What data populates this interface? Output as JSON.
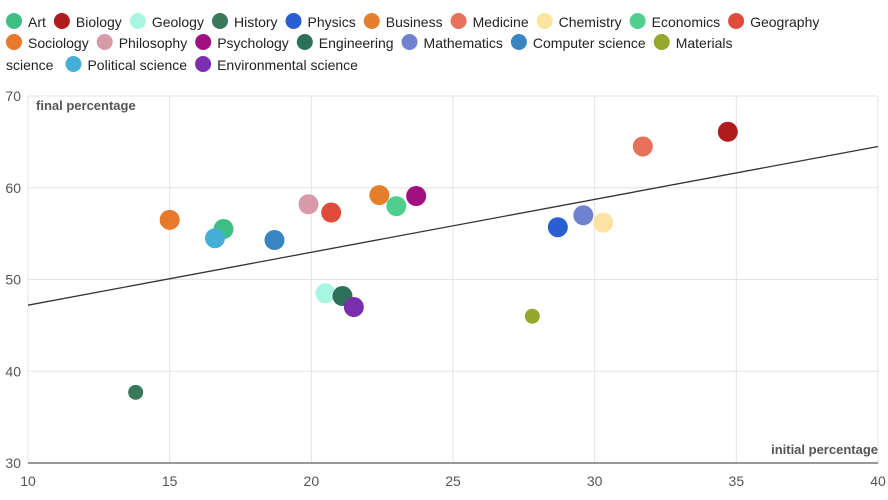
{
  "chart_data": {
    "type": "scatter",
    "xlabel": "initial percentage",
    "ylabel": "final percentage",
    "xlim": [
      10,
      40
    ],
    "ylim": [
      30,
      70
    ],
    "xticks": [
      "10",
      "15",
      "20",
      "25",
      "30",
      "35",
      "40"
    ],
    "yticks": [
      "30",
      "40",
      "50",
      "60",
      "70"
    ],
    "grid": true,
    "legend_position": "top",
    "trendline": {
      "x": [
        10,
        40
      ],
      "y": [
        47.2,
        64.5
      ],
      "color": "#333333"
    },
    "series": [
      {
        "name": "Art",
        "color": "#3dbf84",
        "x": 16.9,
        "y": 55.5
      },
      {
        "name": "Biology",
        "color": "#b01c1c",
        "x": 34.7,
        "y": 66.1
      },
      {
        "name": "Geology",
        "color": "#a8f5e1",
        "x": 20.5,
        "y": 48.5
      },
      {
        "name": "History",
        "color": "#3a7a5c",
        "x": 13.8,
        "y": 37.7
      },
      {
        "name": "Physics",
        "color": "#2a5fd4",
        "x": 28.7,
        "y": 55.7
      },
      {
        "name": "Business",
        "color": "#e57f2b",
        "x": 22.4,
        "y": 59.2
      },
      {
        "name": "Medicine",
        "color": "#e8715c",
        "x": 31.7,
        "y": 64.5
      },
      {
        "name": "Chemistry",
        "color": "#fde3a0",
        "x": 30.3,
        "y": 56.2
      },
      {
        "name": "Economics",
        "color": "#4fcf8d",
        "x": 23.0,
        "y": 58.0
      },
      {
        "name": "Geography",
        "color": "#e04b3c",
        "x": 20.7,
        "y": 57.3
      },
      {
        "name": "Sociology",
        "color": "#e8782a",
        "x": 15.0,
        "y": 56.5
      },
      {
        "name": "Philosophy",
        "color": "#d89aa8",
        "x": 19.9,
        "y": 58.2
      },
      {
        "name": "Psychology",
        "color": "#a0107f",
        "x": 23.7,
        "y": 59.1
      },
      {
        "name": "Engineering",
        "color": "#2e7059",
        "x": 21.1,
        "y": 48.2
      },
      {
        "name": "Mathematics",
        "color": "#6f82cf",
        "x": 29.6,
        "y": 57.0
      },
      {
        "name": "Computer science",
        "color": "#3886c1",
        "x": 18.7,
        "y": 54.3
      },
      {
        "name": "Materials science",
        "color": "#95a82c",
        "x": 27.8,
        "y": 46.0
      },
      {
        "name": "Political science",
        "color": "#45afd8",
        "x": 16.6,
        "y": 54.5
      },
      {
        "name": "Environmental science",
        "color": "#7b2fae",
        "x": 21.5,
        "y": 47.0
      }
    ]
  }
}
